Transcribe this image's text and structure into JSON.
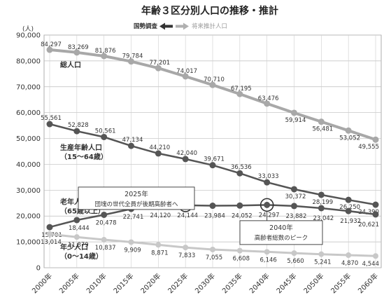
{
  "chart_data": {
    "type": "line",
    "title": "年齢３区分別人口の推移・推計",
    "unit_label": "(人)",
    "ylim": [
      0,
      90000
    ],
    "yticks": [
      "0",
      "10,000",
      "20,000",
      "30,000",
      "40,000",
      "50,000",
      "60,000",
      "70,000",
      "80,000",
      "90,000"
    ],
    "ytick_values": [
      0,
      10000,
      20000,
      30000,
      40000,
      50000,
      60000,
      70000,
      80000,
      90000
    ],
    "x": [
      "2000年",
      "2005年",
      "2010年",
      "2015年",
      "2020年",
      "2025年",
      "2030年",
      "2035年",
      "2040年",
      "2045年",
      "2050年",
      "2055年",
      "2060年"
    ],
    "grid": true,
    "legend": {
      "actual_label": "国勢調査",
      "projected_label": "将来推計人口",
      "placement": "top-center"
    },
    "series": [
      {
        "name": "総人口",
        "values": [
          84297,
          83269,
          81876,
          79784,
          77201,
          74017,
          70710,
          67195,
          63476,
          59914,
          56481,
          53052,
          49555
        ],
        "labels": [
          "84,297",
          "83,269",
          "81,876",
          "79,784",
          "77,201",
          "74,017",
          "70,710",
          "67,195",
          "63,476",
          "59,914",
          "56,481",
          "53,052",
          "49,555"
        ],
        "color": "#a8a8a8"
      },
      {
        "name": "生産年齢人口\n（15～64歳）",
        "values": [
          55561,
          52828,
          50561,
          47134,
          44210,
          42040,
          39671,
          36536,
          33033,
          30372,
          28199,
          26250,
          24390
        ],
        "labels": [
          "55,561",
          "52,828",
          "50,561",
          "47,134",
          "44,210",
          "42,040",
          "39,671",
          "36,536",
          "33,033",
          "30,372",
          "28,199",
          "26,250",
          "24,390"
        ],
        "color": "#555555"
      },
      {
        "name": "老年人口\n（65歳以上）",
        "values": [
          15701,
          18444,
          20478,
          22741,
          24120,
          24144,
          23984,
          24052,
          24297,
          23882,
          23042,
          21932,
          20621
        ],
        "labels": [
          "15,701",
          "18,444",
          "20,478",
          "22,741",
          "24,120",
          "24,144",
          "23,984",
          "24,052",
          "24,297",
          "23,882",
          "23,042",
          "21,932",
          "20,621"
        ],
        "color": "#555555"
      },
      {
        "name": "年少人口\n（0～14歳）",
        "values": [
          13014,
          11879,
          10837,
          9909,
          8871,
          7833,
          7055,
          6608,
          6146,
          5660,
          5241,
          4870,
          4544
        ],
        "labels": [
          "13,014",
          "11,879",
          "10,837",
          "9,909",
          "8,871",
          "7,833",
          "7,055",
          "6,608",
          "6,146",
          "5,660",
          "5,241",
          "4,870",
          "4,544"
        ],
        "color": "#c8c8c8"
      }
    ],
    "annotations": [
      {
        "year_line1": "2025年",
        "text": "団塊の世代全員が後期高齢者へ",
        "target_index": 5
      },
      {
        "year_line1": "2040年",
        "text": "高齢者総数のピーク",
        "target_index": 8
      }
    ]
  }
}
